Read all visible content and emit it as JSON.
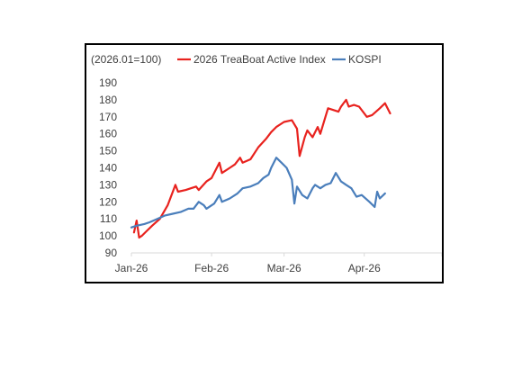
{
  "chart_data": {
    "type": "line",
    "unit_label": "(2026.01=100)",
    "x_tick_labels": [
      "Jan-26",
      "Feb-26",
      "Mar-26",
      "Apr-26"
    ],
    "y_ticks": [
      90,
      100,
      110,
      120,
      130,
      140,
      150,
      160,
      170,
      180,
      190
    ],
    "ylim": [
      90,
      190
    ],
    "xlim": [
      "2026-01-01",
      "2026-05-01"
    ],
    "grid": false,
    "legend_position": "top",
    "series": [
      {
        "name": "2026 TreaBoat Active Index",
        "color": "#E8221E",
        "points": [
          [
            "2026-01-02",
            102
          ],
          [
            "2026-01-03",
            109
          ],
          [
            "2026-01-04",
            99
          ],
          [
            "2026-01-05",
            100
          ],
          [
            "2026-01-07",
            103
          ],
          [
            "2026-01-09",
            106
          ],
          [
            "2026-01-12",
            110
          ],
          [
            "2026-01-15",
            118
          ],
          [
            "2026-01-18",
            130
          ],
          [
            "2026-01-19",
            126
          ],
          [
            "2026-01-22",
            127
          ],
          [
            "2026-01-24",
            128
          ],
          [
            "2026-01-26",
            129
          ],
          [
            "2026-01-27",
            127
          ],
          [
            "2026-01-30",
            132
          ],
          [
            "2026-02-01",
            134
          ],
          [
            "2026-02-04",
            143
          ],
          [
            "2026-02-05",
            137
          ],
          [
            "2026-02-08",
            140
          ],
          [
            "2026-02-10",
            142
          ],
          [
            "2026-02-12",
            146
          ],
          [
            "2026-02-13",
            143
          ],
          [
            "2026-02-16",
            145
          ],
          [
            "2026-02-19",
            152
          ],
          [
            "2026-02-22",
            157
          ],
          [
            "2026-02-24",
            161
          ],
          [
            "2026-02-26",
            164
          ],
          [
            "2026-03-01",
            167
          ],
          [
            "2026-03-04",
            168
          ],
          [
            "2026-03-06",
            163
          ],
          [
            "2026-03-07",
            147
          ],
          [
            "2026-03-09",
            158
          ],
          [
            "2026-03-10",
            162
          ],
          [
            "2026-03-12",
            158
          ],
          [
            "2026-03-14",
            164
          ],
          [
            "2026-03-15",
            160
          ],
          [
            "2026-03-17",
            170
          ],
          [
            "2026-03-18",
            175
          ],
          [
            "2026-03-20",
            174
          ],
          [
            "2026-03-22",
            173
          ],
          [
            "2026-03-23",
            176
          ],
          [
            "2026-03-25",
            180
          ],
          [
            "2026-03-26",
            176
          ],
          [
            "2026-03-28",
            177
          ],
          [
            "2026-03-30",
            176
          ],
          [
            "2026-04-02",
            170
          ],
          [
            "2026-04-04",
            171
          ],
          [
            "2026-04-07",
            175
          ],
          [
            "2026-04-09",
            178
          ],
          [
            "2026-04-11",
            172
          ]
        ]
      },
      {
        "name": "KOSPI",
        "color": "#4A7EBB",
        "points": [
          [
            "2026-01-01",
            105
          ],
          [
            "2026-01-03",
            106
          ],
          [
            "2026-01-06",
            107
          ],
          [
            "2026-01-08",
            108
          ],
          [
            "2026-01-11",
            110
          ],
          [
            "2026-01-14",
            112
          ],
          [
            "2026-01-17",
            113
          ],
          [
            "2026-01-20",
            114
          ],
          [
            "2026-01-23",
            116
          ],
          [
            "2026-01-25",
            116
          ],
          [
            "2026-01-27",
            120
          ],
          [
            "2026-01-29",
            118
          ],
          [
            "2026-01-30",
            116
          ],
          [
            "2026-02-02",
            119
          ],
          [
            "2026-02-04",
            124
          ],
          [
            "2026-02-05",
            120
          ],
          [
            "2026-02-08",
            122
          ],
          [
            "2026-02-11",
            125
          ],
          [
            "2026-02-13",
            128
          ],
          [
            "2026-02-16",
            129
          ],
          [
            "2026-02-19",
            131
          ],
          [
            "2026-02-21",
            134
          ],
          [
            "2026-02-23",
            136
          ],
          [
            "2026-02-24",
            140
          ],
          [
            "2026-02-26",
            146
          ],
          [
            "2026-02-28",
            143
          ],
          [
            "2026-03-02",
            140
          ],
          [
            "2026-03-04",
            133
          ],
          [
            "2026-03-05",
            119
          ],
          [
            "2026-03-06",
            129
          ],
          [
            "2026-03-08",
            124
          ],
          [
            "2026-03-10",
            122
          ],
          [
            "2026-03-12",
            128
          ],
          [
            "2026-03-13",
            130
          ],
          [
            "2026-03-15",
            128
          ],
          [
            "2026-03-17",
            130
          ],
          [
            "2026-03-19",
            131
          ],
          [
            "2026-03-21",
            137
          ],
          [
            "2026-03-23",
            132
          ],
          [
            "2026-03-25",
            130
          ],
          [
            "2026-03-27",
            128
          ],
          [
            "2026-03-29",
            123
          ],
          [
            "2026-03-31",
            124
          ],
          [
            "2026-04-03",
            120
          ],
          [
            "2026-04-05",
            117
          ],
          [
            "2026-04-06",
            126
          ],
          [
            "2026-04-07",
            122
          ],
          [
            "2026-04-09",
            125
          ]
        ]
      }
    ]
  }
}
